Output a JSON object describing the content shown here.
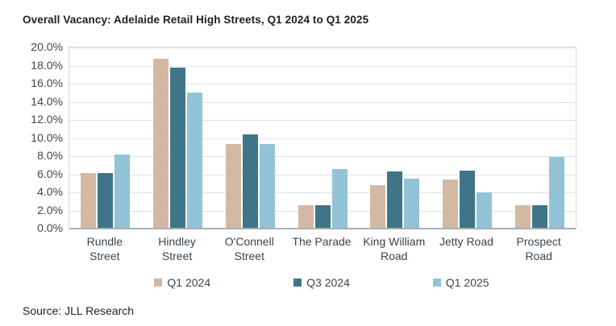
{
  "title": "Overall Vacancy: Adelaide Retail High Streets, Q1 2024 to Q1 2025",
  "source": "Source: JLL Research",
  "colors": {
    "q1_2024": "#d3b9a4",
    "q3_2024": "#3f7589",
    "q1_2025": "#92c3d6",
    "gridline": "#dce4e6",
    "axis_line": "#a9b0b2",
    "label_text": "#3c454d"
  },
  "chart_data": {
    "type": "bar",
    "title": "Overall Vacancy: Adelaide Retail High Streets, Q1 2024 to Q1 2025",
    "categories": [
      "Rundle\nStreet",
      "Hindley\nStreet",
      "O'Connell\nStreet",
      "The Parade",
      "King William\nRoad",
      "Jetty Road",
      "Prospect\nRoad"
    ],
    "series": [
      {
        "name": "Q1 2024",
        "color": "#d3b9a4",
        "values": [
          6.1,
          18.8,
          9.3,
          2.6,
          4.8,
          5.4,
          2.6
        ]
      },
      {
        "name": "Q3 2024",
        "color": "#3f7589",
        "values": [
          6.1,
          17.8,
          10.4,
          2.6,
          6.3,
          6.4,
          2.6
        ]
      },
      {
        "name": "Q1 2025",
        "color": "#92c3d6",
        "values": [
          8.2,
          15.0,
          9.3,
          6.6,
          5.5,
          4.0,
          7.9
        ]
      }
    ],
    "xlabel": "",
    "ylabel": "",
    "ylim": [
      0,
      20
    ],
    "ytick_step": 2,
    "ytick_labels": [
      "0.0%",
      "2.0%",
      "4.0%",
      "6.0%",
      "8.0%",
      "10.0%",
      "12.0%",
      "14.0%",
      "16.0%",
      "18.0%",
      "20.0%"
    ],
    "grid": true,
    "legend_position": "bottom"
  }
}
